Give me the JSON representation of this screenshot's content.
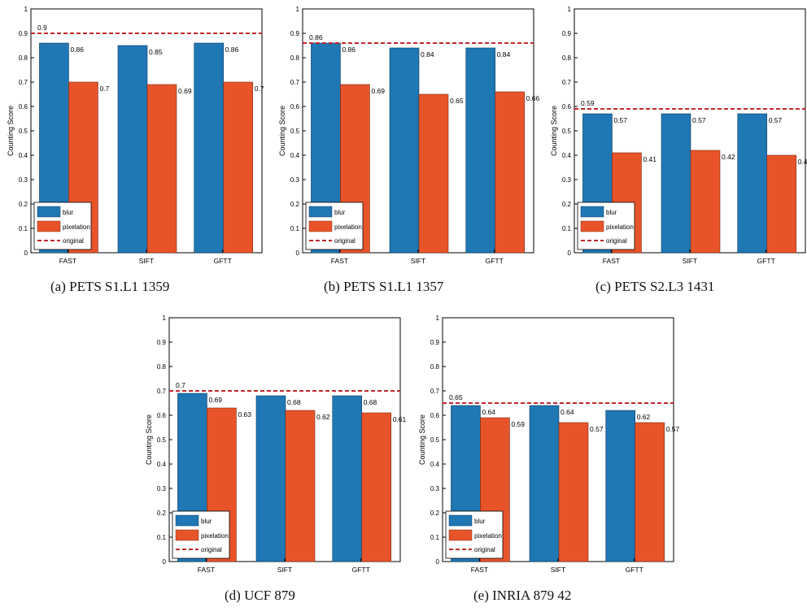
{
  "colors": {
    "blur": "#1f77b4",
    "pixelation": "#e8542a",
    "original": "#c0272d",
    "axis": "#000000"
  },
  "legend_labels": {
    "blur": "blur",
    "pixelation": "pixelation",
    "original": "original"
  },
  "chart_data": [
    {
      "type": "bar",
      "caption": "(a)  PETS S1.L1 1359",
      "ylabel": "Counting Score",
      "categories": [
        "FAST",
        "SIFT",
        "GFTT"
      ],
      "ylim": [
        0,
        1
      ],
      "yticks": [
        "0",
        "0.1",
        "0.2",
        "0.3",
        "0.4",
        "0.5",
        "0.6",
        "0.7",
        "0.8",
        "0.9",
        "1"
      ],
      "series": [
        {
          "name": "blur",
          "values": [
            0.86,
            0.85,
            0.86
          ]
        },
        {
          "name": "pixelation",
          "values": [
            0.7,
            0.69,
            0.7
          ]
        }
      ],
      "original": 0.9,
      "original_label": "0.9",
      "blur_labels": [
        "0.86",
        "0.85",
        "0.86"
      ],
      "pix_labels": [
        "0.7",
        "0.69",
        "0.7"
      ],
      "legend": "bottom-left"
    },
    {
      "type": "bar",
      "caption": "(b)  PETS S1.L1 1357",
      "ylabel": "Counting Score",
      "categories": [
        "FAST",
        "SIFT",
        "GFTT"
      ],
      "ylim": [
        0,
        1
      ],
      "yticks": [
        "0",
        "0.1",
        "0.2",
        "0.3",
        "0.4",
        "0.5",
        "0.6",
        "0.7",
        "0.8",
        "0.9",
        "1"
      ],
      "series": [
        {
          "name": "blur",
          "values": [
            0.86,
            0.84,
            0.84
          ]
        },
        {
          "name": "pixelation",
          "values": [
            0.69,
            0.65,
            0.66
          ]
        }
      ],
      "original": 0.86,
      "original_label": "0.86",
      "blur_labels": [
        "0.86",
        "0.84",
        "0.84"
      ],
      "pix_labels": [
        "0.69",
        "0.65",
        "0.66"
      ],
      "legend": "bottom-left"
    },
    {
      "type": "bar",
      "caption": "(c)  PETS S2.L3 1431",
      "ylabel": "Counting Score",
      "categories": [
        "FAST",
        "SIFT",
        "GFTT"
      ],
      "ylim": [
        0,
        1
      ],
      "yticks": [
        "0",
        "0.1",
        "0.2",
        "0.3",
        "0.4",
        "0.5",
        "0.6",
        "0.7",
        "0.8",
        "0.9",
        "1"
      ],
      "series": [
        {
          "name": "blur",
          "values": [
            0.57,
            0.57,
            0.57
          ]
        },
        {
          "name": "pixelation",
          "values": [
            0.41,
            0.42,
            0.4
          ]
        }
      ],
      "original": 0.59,
      "original_label": "0.59",
      "blur_labels": [
        "0.57",
        "0.57",
        "0.57"
      ],
      "pix_labels": [
        "0.41",
        "0.42",
        "0.4"
      ],
      "legend": "bottom-left"
    },
    {
      "type": "bar",
      "caption": "(d)  UCF 879",
      "ylabel": "Counting Score",
      "categories": [
        "FAST",
        "SIFT",
        "GFTT"
      ],
      "ylim": [
        0,
        1
      ],
      "yticks": [
        "0",
        "0.1",
        "0.2",
        "0.3",
        "0.4",
        "0.5",
        "0.6",
        "0.7",
        "0.8",
        "0.9",
        "1"
      ],
      "series": [
        {
          "name": "blur",
          "values": [
            0.69,
            0.68,
            0.68
          ]
        },
        {
          "name": "pixelation",
          "values": [
            0.63,
            0.62,
            0.61
          ]
        }
      ],
      "original": 0.7,
      "original_label": "0.7",
      "blur_labels": [
        "0.69",
        "0.68",
        "0.68"
      ],
      "pix_labels": [
        "0.63",
        "0.62",
        "0.61"
      ],
      "legend": "bottom-left"
    },
    {
      "type": "bar",
      "caption": "(e)  INRIA 879 42",
      "ylabel": "Counting Score",
      "categories": [
        "FAST",
        "SIFT",
        "GFTT"
      ],
      "ylim": [
        0,
        1
      ],
      "yticks": [
        "0",
        "0.1",
        "0.2",
        "0.3",
        "0.4",
        "0.5",
        "0.6",
        "0.7",
        "0.8",
        "0.9",
        "1"
      ],
      "series": [
        {
          "name": "blur",
          "values": [
            0.64,
            0.64,
            0.62
          ]
        },
        {
          "name": "pixelation",
          "values": [
            0.59,
            0.57,
            0.57
          ]
        }
      ],
      "original": 0.65,
      "original_label": "0.65",
      "blur_labels": [
        "0.64",
        "0.64",
        "0.62"
      ],
      "pix_labels": [
        "0.59",
        "0.57",
        "0.57"
      ],
      "legend": "bottom-left"
    }
  ]
}
